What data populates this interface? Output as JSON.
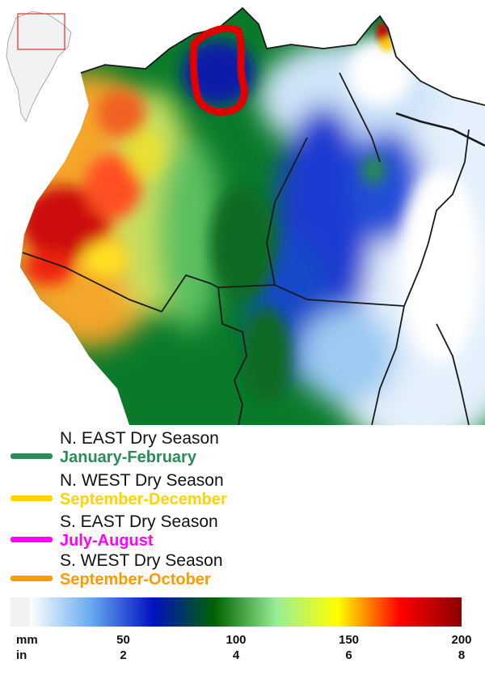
{
  "legend": {
    "items": [
      {
        "region": "N. EAST Dry Season",
        "months": "January-February",
        "color": "#2e8b57"
      },
      {
        "region": "N. WEST Dry Season",
        "months": "September-December",
        "color": "#ffd400"
      },
      {
        "region": "S. EAST Dry Season",
        "months": "July-August",
        "color": "#ff00ff"
      },
      {
        "region": "S. WEST Dry Season",
        "months": "September-October",
        "color": "#ff9900"
      }
    ]
  },
  "scale": {
    "unit_mm": "mm",
    "unit_in": "in",
    "ticks": [
      {
        "value": 50,
        "mm": "50",
        "in": "2"
      },
      {
        "value": 100,
        "mm": "100",
        "in": "4"
      },
      {
        "value": 150,
        "mm": "150",
        "in": "6"
      },
      {
        "value": 200,
        "mm": "200",
        "in": "8"
      }
    ],
    "min": 0,
    "max": 200,
    "stops": [
      "#ffffff",
      "#66aaf0",
      "#0010c0",
      "#006400",
      "#98ee98",
      "#ffff00",
      "#ff0000",
      "#8b0000"
    ]
  },
  "map": {
    "highlight_color": "#e00000"
  }
}
